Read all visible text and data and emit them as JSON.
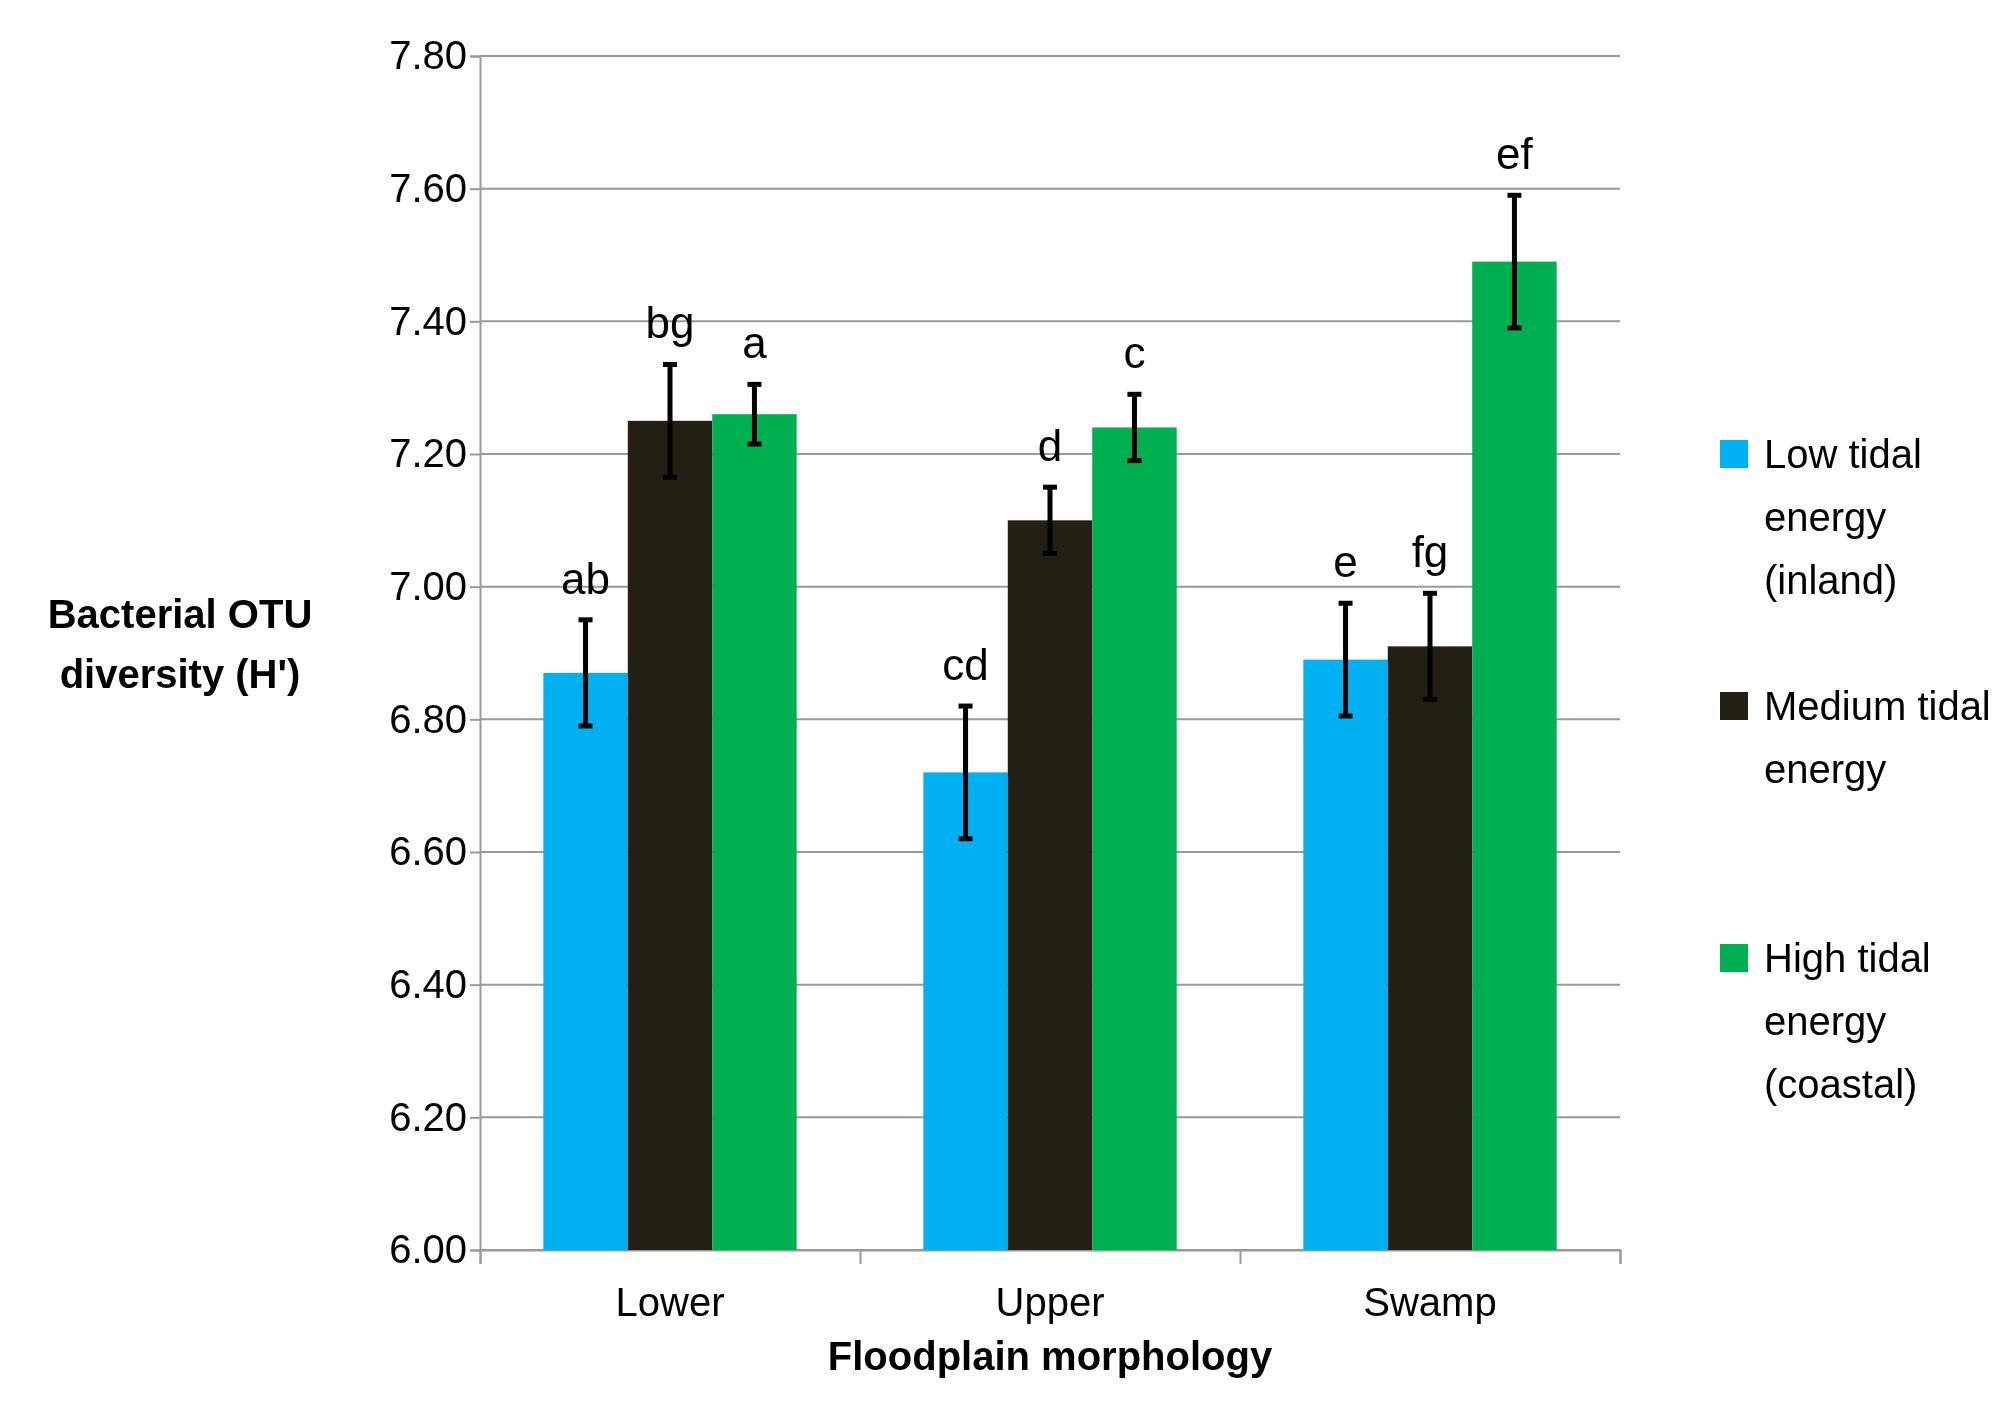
{
  "chart_data": {
    "type": "bar",
    "xlabel": "Floodplain morphology",
    "ylabel": "Bacterial OTU diversity (H')",
    "categories": [
      "Lower",
      "Upper",
      "Swamp"
    ],
    "series": [
      {
        "name": "Low tidal energy (inland)",
        "color": "#00b0f0",
        "values": [
          6.87,
          6.72,
          6.89
        ],
        "errors": [
          0.08,
          0.1,
          0.085
        ]
      },
      {
        "name": "Medium tidal energy",
        "color": "#231f14",
        "values": [
          7.25,
          7.1,
          6.91
        ],
        "errors": [
          0.085,
          0.05,
          0.08
        ]
      },
      {
        "name": "High tidal energy (coastal)",
        "color": "#00b050",
        "values": [
          7.26,
          7.24,
          7.49
        ],
        "errors": [
          0.045,
          0.05,
          0.1
        ]
      }
    ],
    "ylim": [
      6,
      7.8
    ],
    "yticks": [
      {
        "value": 6,
        "label": "6.00"
      },
      {
        "value": 6.2,
        "label": "6.20"
      },
      {
        "value": 6.4,
        "label": "6.40"
      },
      {
        "value": 6.6,
        "label": "6.60"
      },
      {
        "value": 6.8,
        "label": "6.80"
      },
      {
        "value": 7,
        "label": "7.00"
      },
      {
        "value": 7.2,
        "label": "7.20"
      },
      {
        "value": 7.4,
        "label": "7.40"
      },
      {
        "value": 7.6,
        "label": "7.60"
      },
      {
        "value": 7.8,
        "label": "7.80"
      }
    ],
    "grid": "y",
    "legend": "right",
    "annotations": [
      "ab",
      "bg",
      "a",
      "cd",
      "d",
      "c",
      "e",
      "fg",
      "ef"
    ]
  }
}
